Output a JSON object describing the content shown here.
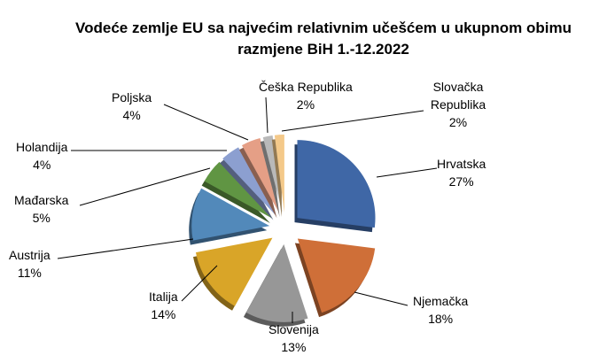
{
  "chart_data": {
    "type": "pie",
    "title": "Vodeće zemlje EU  sa najvećim relativnim učešćem u ukupnom obimu razmjene BiH 1.-12.2022",
    "slices": [
      {
        "label": "Hrvatska",
        "value": 27,
        "value_label": "27%",
        "color": "#3f67a6"
      },
      {
        "label": "Njemačka",
        "value": 18,
        "value_label": "18%",
        "color": "#cf6f38"
      },
      {
        "label": "Slovenija",
        "value": 13,
        "value_label": "13%",
        "color": "#979797"
      },
      {
        "label": "Italija",
        "value": 14,
        "value_label": "14%",
        "color": "#d9a528"
      },
      {
        "label": "Austrija",
        "value": 11,
        "value_label": "11%",
        "color": "#5289ba"
      },
      {
        "label": "Mađarska",
        "value": 5,
        "value_label": "5%",
        "color": "#609543"
      },
      {
        "label": "Holandija",
        "value": 4,
        "value_label": "4%",
        "color": "#8c9fd0"
      },
      {
        "label": "Poljska",
        "value": 4,
        "value_label": "4%",
        "color": "#e59f86"
      },
      {
        "label": "Češka Republika",
        "value": 2,
        "value_label": "2%",
        "color": "#b9b9b9"
      },
      {
        "label": "Slovačka Republika",
        "value": 2,
        "value_label": "2%",
        "color": "#f4c98a"
      }
    ],
    "legend": "none"
  }
}
